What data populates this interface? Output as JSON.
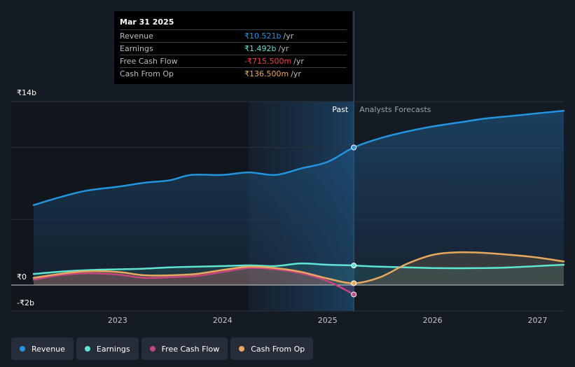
{
  "chart_data": {
    "type": "line",
    "y_axis_labels": [
      "₹14b",
      "₹0",
      "-₹2b"
    ],
    "ylim": [
      -2,
      14
    ],
    "x_tick_labels": [
      "2023",
      "2024",
      "2025",
      "2026",
      "2027"
    ],
    "x_tick_values": [
      2023,
      2024,
      2025,
      2026,
      2027
    ],
    "xlim": [
      2022.2,
      2027.25
    ],
    "past_label": "Past",
    "forecast_label": "Analysts Forecasts",
    "past_region_start": 2024.25,
    "forecast_start": 2025.25,
    "series": [
      {
        "name": "Revenue",
        "color": "#2394df",
        "x": [
          2022.2,
          2022.45,
          2022.7,
          2023.0,
          2023.25,
          2023.5,
          2023.7,
          2024.0,
          2024.25,
          2024.5,
          2024.75,
          2025.0,
          2025.25,
          2025.5,
          2025.75,
          2026.0,
          2026.25,
          2026.5,
          2026.75,
          2027.0,
          2027.25
        ],
        "y": [
          6.1,
          6.7,
          7.2,
          7.5,
          7.8,
          8.0,
          8.4,
          8.4,
          8.6,
          8.4,
          8.9,
          9.4,
          10.5,
          11.2,
          11.7,
          12.1,
          12.4,
          12.7,
          12.9,
          13.1,
          13.3
        ]
      },
      {
        "name": "Earnings",
        "color": "#5ee6d3",
        "x": [
          2022.2,
          2022.5,
          2022.75,
          2023.0,
          2023.25,
          2023.5,
          2023.75,
          2024.0,
          2024.25,
          2024.5,
          2024.75,
          2025.0,
          2025.25,
          2025.5,
          2025.75,
          2026.0,
          2026.25,
          2026.5,
          2026.75,
          2027.0,
          2027.25
        ],
        "y": [
          0.85,
          1.05,
          1.15,
          1.2,
          1.25,
          1.35,
          1.4,
          1.45,
          1.5,
          1.45,
          1.65,
          1.55,
          1.49,
          1.4,
          1.35,
          1.3,
          1.28,
          1.3,
          1.35,
          1.45,
          1.55
        ]
      },
      {
        "name": "Free Cash Flow",
        "color": "#c6457f",
        "x": [
          2022.2,
          2022.45,
          2022.7,
          2023.0,
          2023.25,
          2023.5,
          2023.75,
          2024.0,
          2024.25,
          2024.5,
          2024.75,
          2025.0,
          2025.25
        ],
        "y": [
          0.4,
          0.75,
          0.9,
          0.8,
          0.55,
          0.6,
          0.7,
          1.0,
          1.3,
          1.2,
          0.9,
          0.3,
          -0.72
        ]
      },
      {
        "name": "Cash From Op",
        "color": "#e8a95e",
        "x": [
          2022.2,
          2022.45,
          2022.7,
          2023.0,
          2023.25,
          2023.5,
          2023.75,
          2024.0,
          2024.25,
          2024.5,
          2024.75,
          2025.0,
          2025.25,
          2025.5,
          2025.75,
          2026.0,
          2026.25,
          2026.5,
          2026.75,
          2027.0,
          2027.25
        ],
        "y": [
          0.55,
          0.85,
          1.05,
          1.0,
          0.75,
          0.75,
          0.85,
          1.15,
          1.4,
          1.3,
          1.0,
          0.5,
          0.14,
          0.6,
          1.6,
          2.3,
          2.5,
          2.45,
          2.3,
          2.1,
          1.8
        ]
      }
    ]
  },
  "tooltip": {
    "date": "Mar 31 2025",
    "rows": [
      {
        "label": "Revenue",
        "value": "₹10.521b",
        "unit": "/yr",
        "color": "#2394df"
      },
      {
        "label": "Earnings",
        "value": "₹1.492b",
        "unit": "/yr",
        "color": "#5ee6d3"
      },
      {
        "label": "Free Cash Flow",
        "value": "-₹715.500m",
        "unit": "/yr",
        "color": "#f0414b"
      },
      {
        "label": "Cash From Op",
        "value": "₹136.500m",
        "unit": "/yr",
        "color": "#e8a95e"
      }
    ]
  },
  "legend": [
    {
      "label": "Revenue",
      "color": "#2394df"
    },
    {
      "label": "Earnings",
      "color": "#5ee6d3"
    },
    {
      "label": "Free Cash Flow",
      "color": "#c6457f"
    },
    {
      "label": "Cash From Op",
      "color": "#e8a95e"
    }
  ]
}
